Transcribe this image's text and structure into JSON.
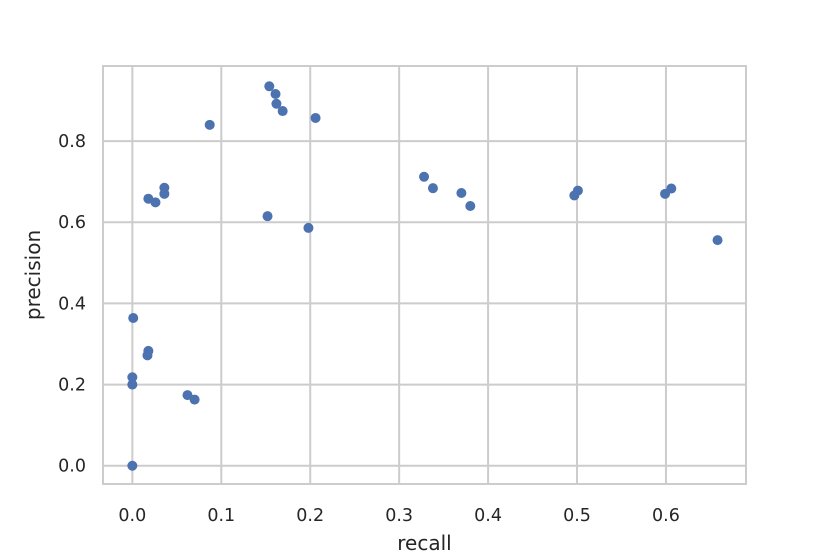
{
  "chart_data": {
    "type": "scatter",
    "title": "",
    "xlabel": "recall",
    "ylabel": "precision",
    "xlim": [
      -0.033,
      0.69
    ],
    "ylim": [
      -0.045,
      0.985
    ],
    "grid": true,
    "xticks": [
      "0.0",
      "0.1",
      "0.2",
      "0.3",
      "0.4",
      "0.5",
      "0.6"
    ],
    "xtick_values": [
      0.0,
      0.1,
      0.2,
      0.3,
      0.4,
      0.5,
      0.6
    ],
    "yticks": [
      "0.0",
      "0.2",
      "0.4",
      "0.6",
      "0.8"
    ],
    "ytick_values": [
      0.0,
      0.2,
      0.4,
      0.6,
      0.8
    ],
    "colors": {
      "points": "#4c72b0",
      "grid": "#cccccc",
      "frame": "#cccccc"
    },
    "series": [
      {
        "x": [
          0.0,
          0.0,
          0.0,
          0.001,
          0.017,
          0.018,
          0.018,
          0.026,
          0.036,
          0.036,
          0.062,
          0.07,
          0.087,
          0.152,
          0.154,
          0.161,
          0.162,
          0.169,
          0.198,
          0.206,
          0.328,
          0.338,
          0.37,
          0.38,
          0.497,
          0.501,
          0.599,
          0.606,
          0.658
        ],
        "y": [
          0.0,
          0.2,
          0.218,
          0.364,
          0.272,
          0.283,
          0.658,
          0.649,
          0.67,
          0.685,
          0.174,
          0.163,
          0.84,
          0.615,
          0.935,
          0.916,
          0.892,
          0.874,
          0.586,
          0.857,
          0.712,
          0.684,
          0.672,
          0.64,
          0.666,
          0.678,
          0.67,
          0.683,
          0.556
        ]
      }
    ]
  }
}
